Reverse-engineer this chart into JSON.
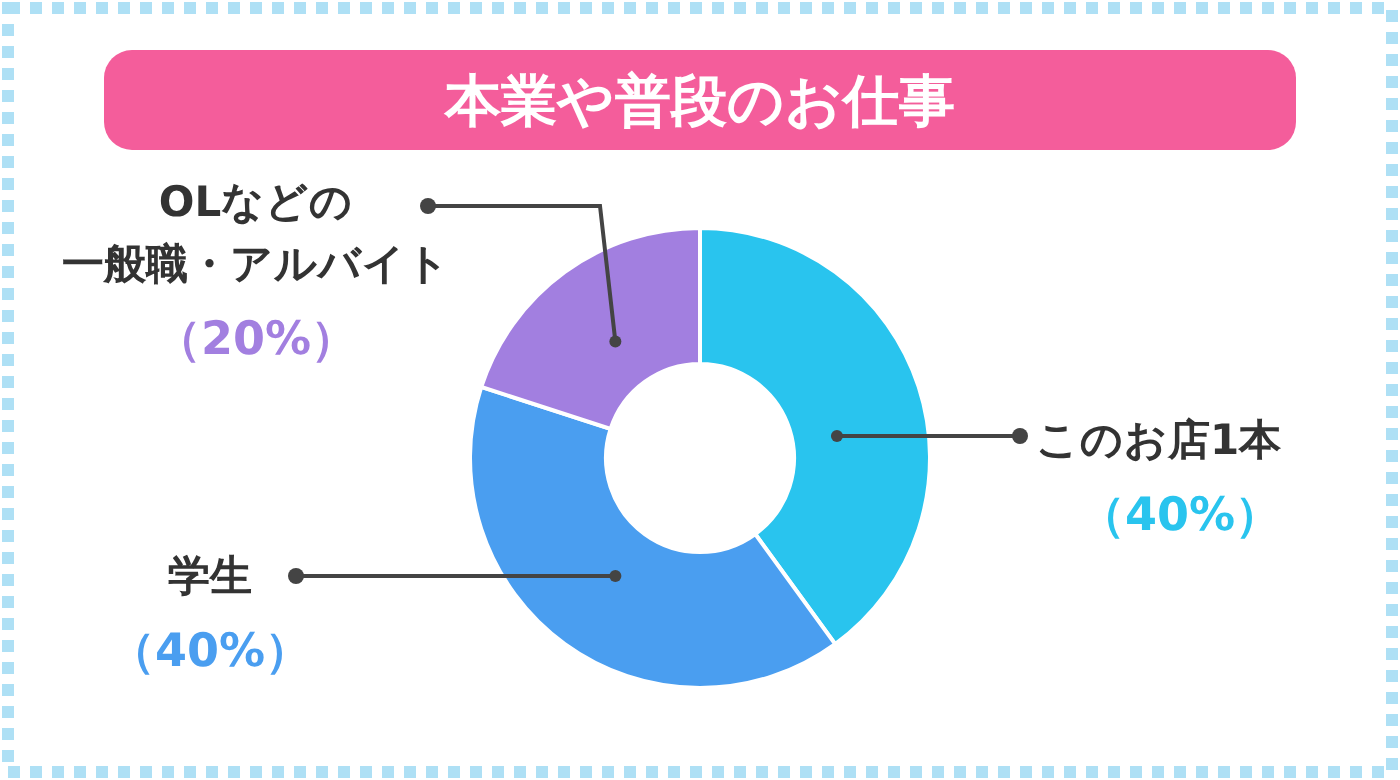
{
  "chart_data": {
    "type": "donut",
    "title": "本業や普段のお仕事",
    "categories": [
      "このお店1本",
      "学生",
      "OLなどの一般職・アルバイト"
    ],
    "values": [
      40,
      40,
      20
    ],
    "colors": [
      "#29c4ee",
      "#4a9ef0",
      "#a27fe0"
    ],
    "value_labels": [
      "（40%）",
      "（40%）",
      "（20%）"
    ]
  }
}
